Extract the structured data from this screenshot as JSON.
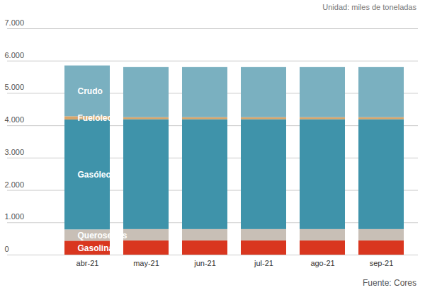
{
  "chart_data": {
    "type": "bar",
    "stacked": true,
    "subtitle": "Unidad: miles de toneladas",
    "caption": "Fuente: Cores",
    "categories": [
      "abr-21",
      "may-21",
      "jun-21",
      "jul-21",
      "ago-21",
      "sep-21"
    ],
    "series": [
      {
        "name": "Gasolinas",
        "color": "#d9361f",
        "values": [
          430,
          440,
          440,
          440,
          440,
          440
        ]
      },
      {
        "name": "Querosenos",
        "color": "#c8bfb6",
        "values": [
          350,
          350,
          350,
          350,
          350,
          350
        ]
      },
      {
        "name": "Gasóleos",
        "color": "#3f93aa",
        "values": [
          3400,
          3400,
          3400,
          3400,
          3400,
          3400
        ]
      },
      {
        "name": "Fuelóleos",
        "color": "#d9a56a",
        "values": [
          100,
          60,
          60,
          60,
          60,
          60
        ]
      },
      {
        "name": "Crudo",
        "color": "#7ab0c0",
        "values": [
          1570,
          1550,
          1550,
          1550,
          1550,
          1550
        ]
      }
    ],
    "ylim": [
      0,
      7000
    ],
    "yticks": [
      0,
      {
        "value": 1000,
        "label": "1.000"
      },
      {
        "value": 2000,
        "label": "2.000"
      },
      {
        "value": 3000,
        "label": "3.000"
      },
      {
        "value": 4000,
        "label": "4.000"
      },
      {
        "value": 5000,
        "label": "5.000"
      },
      {
        "value": 6000,
        "label": "6.000"
      },
      {
        "value": 7000,
        "label": "7.000"
      }
    ],
    "grid": true
  }
}
